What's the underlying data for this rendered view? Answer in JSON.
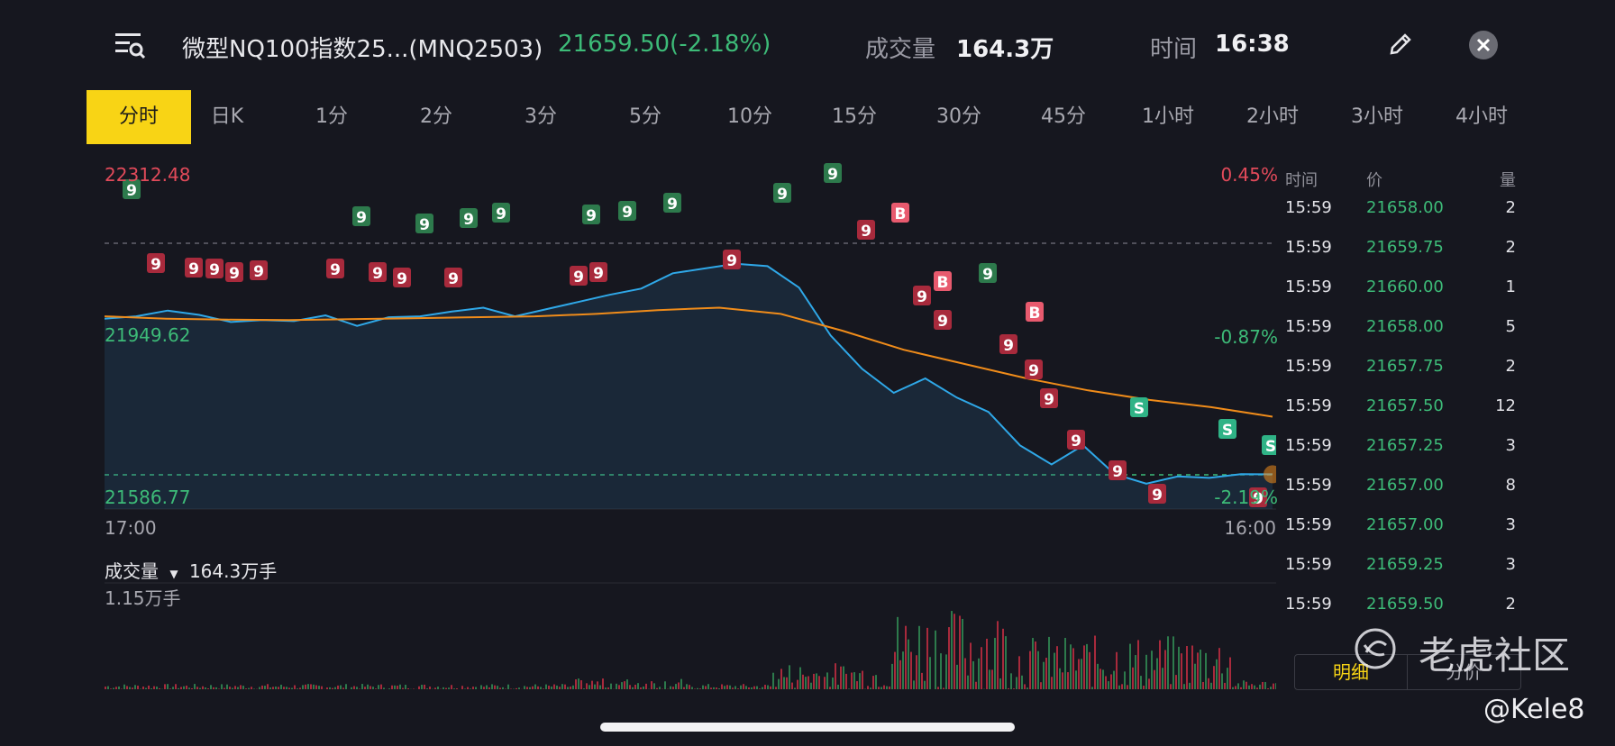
{
  "header": {
    "title": "微型NQ100指数25...(MNQ2503)",
    "price": "21659.50(-2.18%)",
    "volume_label": "成交量",
    "volume_value": "164.3万",
    "time_label": "时间",
    "time_value": "16:38"
  },
  "tabs": [
    "分时",
    "日K",
    "1分",
    "2分",
    "3分",
    "5分",
    "10分",
    "15分",
    "30分",
    "45分",
    "1小时",
    "2小时",
    "3小时",
    "4小时"
  ],
  "active_tab": "分时",
  "chart": {
    "price_high": "22312.48",
    "price_mid": "21949.62",
    "price_low": "21586.77",
    "pct_high": "0.45%",
    "pct_mid": "-0.87%",
    "pct_low": "-2.19%",
    "x_start": "17:00",
    "x_end": "16:00",
    "volume_title": "成交量",
    "volume_total": "164.3万手",
    "volume_max": "1.15万手"
  },
  "chart_data": {
    "type": "line",
    "ylim": [
      21586.77,
      22312.48
    ],
    "series": [
      {
        "values": [
          21985,
          21990,
          22002,
          21993,
          21978,
          21982,
          21980,
          21992,
          21970,
          21988,
          21990,
          22000,
          22008,
          21990,
          22005,
          22020,
          22035,
          22048,
          22080,
          22090,
          22100,
          22095,
          22050,
          21950,
          21880,
          21830,
          21860,
          21820,
          21790,
          21720,
          21680,
          21720,
          21660,
          21640,
          21655,
          21652,
          21660,
          21659.5
        ]
      },
      {
        "values": [
          21990,
          21985,
          21983,
          21982,
          21984,
          21986,
          21988,
          21990,
          21995,
          22003,
          22008,
          21995,
          21960,
          21920,
          21890,
          21860,
          21835,
          21815,
          21800,
          21780
        ]
      }
    ],
    "markers": [
      "9",
      "B",
      "S"
    ],
    "volume_max": "1.15万手"
  },
  "trades": {
    "headers": {
      "time": "时间",
      "price": "价",
      "qty": "量"
    },
    "rows": [
      {
        "time": "15:59",
        "price": "21658.00",
        "qty": "2"
      },
      {
        "time": "15:59",
        "price": "21659.75",
        "qty": "2"
      },
      {
        "time": "15:59",
        "price": "21660.00",
        "qty": "1"
      },
      {
        "time": "15:59",
        "price": "21658.00",
        "qty": "5"
      },
      {
        "time": "15:59",
        "price": "21657.75",
        "qty": "2"
      },
      {
        "time": "15:59",
        "price": "21657.50",
        "qty": "12"
      },
      {
        "time": "15:59",
        "price": "21657.25",
        "qty": "3"
      },
      {
        "time": "15:59",
        "price": "21657.00",
        "qty": "8"
      },
      {
        "time": "15:59",
        "price": "21657.00",
        "qty": "3"
      },
      {
        "time": "15:59",
        "price": "21659.25",
        "qty": "3"
      },
      {
        "time": "15:59",
        "price": "21659.50",
        "qty": "2"
      }
    ]
  },
  "panel_tabs": [
    "明细",
    "分价"
  ],
  "watermark": "老虎社区",
  "handle": "@Kele8",
  "colors": {
    "up": "#3dbb78",
    "down": "#e24a5a",
    "accent": "#f8d415",
    "line": "#2fa8e8",
    "avg": "#f08c1a"
  }
}
